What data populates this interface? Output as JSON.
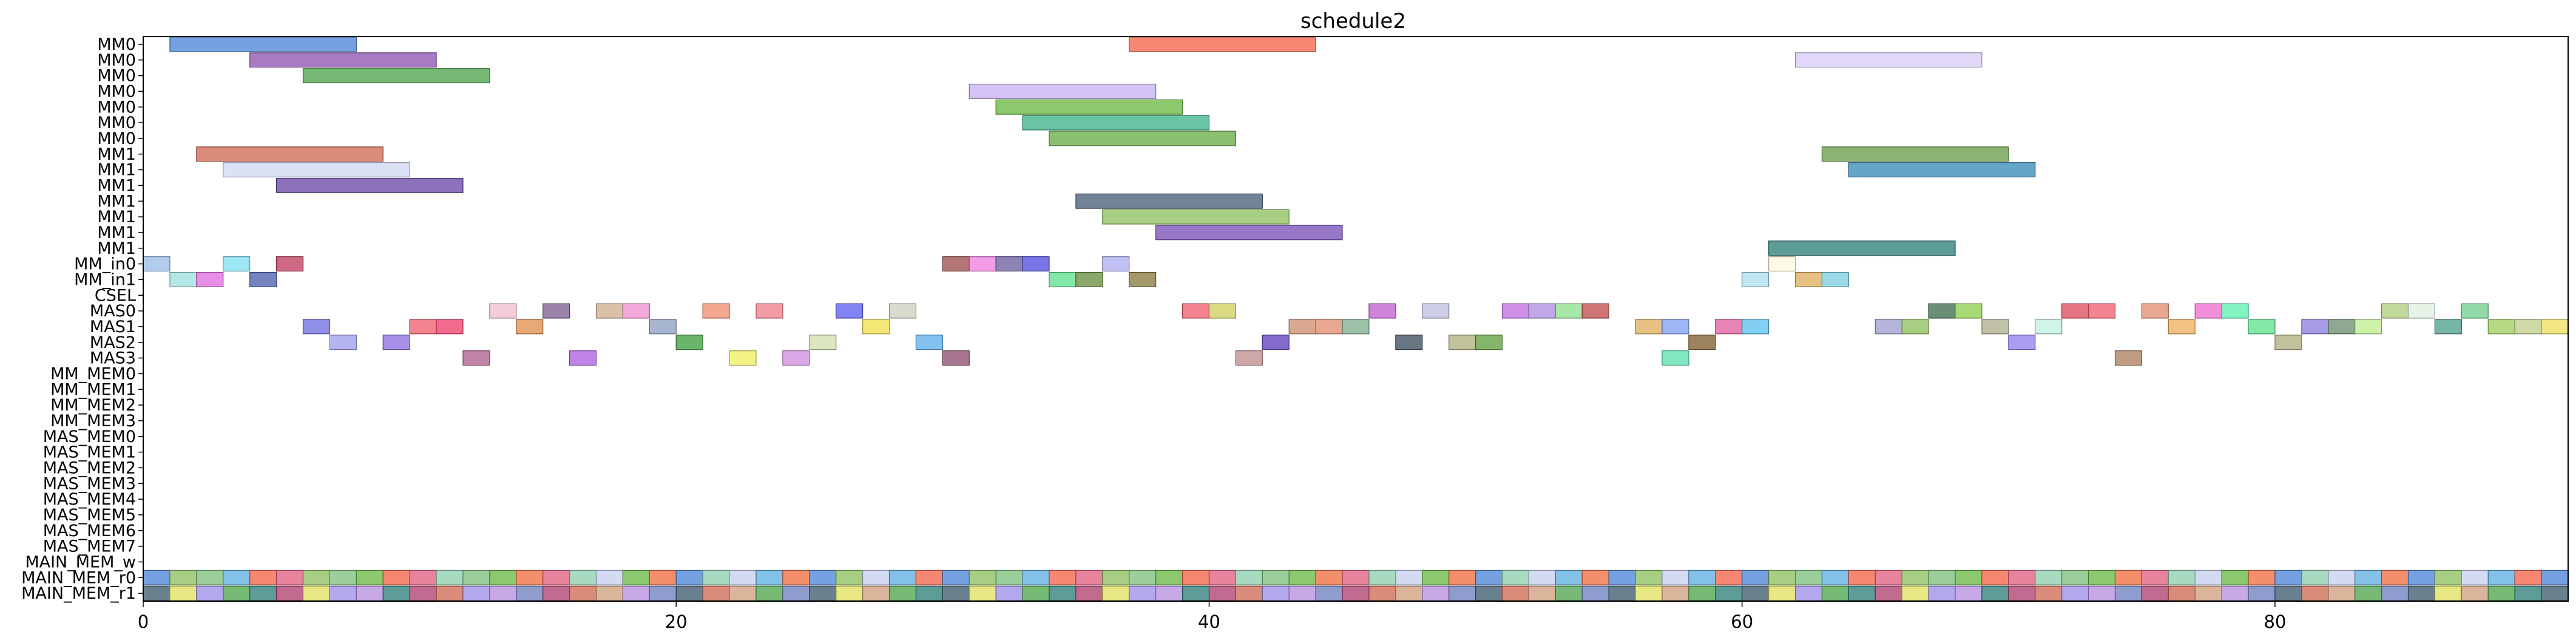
{
  "chart_data": {
    "type": "gantt",
    "title": "schedule2",
    "xlabel": "",
    "ylabel": "",
    "xlim": [
      0,
      91
    ],
    "xticks": [
      0,
      20,
      40,
      60,
      80
    ],
    "rows": [
      "MM0",
      "MM0",
      "MM0",
      "MM0",
      "MM0",
      "MM0",
      "MM0",
      "MM1",
      "MM1",
      "MM1",
      "MM1",
      "MM1",
      "MM1",
      "MM1",
      "MM_in0",
      "MM_in1",
      "CSEL",
      "MAS0",
      "MAS1",
      "MAS2",
      "MAS3",
      "MM_MEM0",
      "MM_MEM1",
      "MM_MEM2",
      "MM_MEM3",
      "MAS_MEM0",
      "MAS_MEM1",
      "MAS_MEM2",
      "MAS_MEM3",
      "MAS_MEM4",
      "MAS_MEM5",
      "MAS_MEM6",
      "MAS_MEM7",
      "MAIN_MEM_w",
      "MAIN_MEM_r0",
      "MAIN_MEM_r1"
    ],
    "palette": [
      "#4e86d8",
      "#8e55b0",
      "#4ea54e",
      "#f4664b",
      "#c470a0",
      "#9d8ee8",
      "#6bb844",
      "#3fb38b",
      "#d06a55",
      "#c9cff0",
      "#6a4aa8",
      "#3f5e70",
      "#8fc060",
      "#2b7d9e",
      "#2f7f7a",
      "#e06080",
      "#80e0f0",
      "#b890e0",
      "#f07040",
      "#a0a0f0",
      "#d0a080",
      "#60b0e0",
      "#f09090",
      "#e0e060",
      "#80c080",
      "#c0c0c0",
      "#b04070",
      "#90d0b0",
      "#e0b040",
      "#7080c0"
    ],
    "bars": [
      {
        "row": 0,
        "start": 1.0,
        "end": 8.0,
        "color": "#4e86d8"
      },
      {
        "row": 0,
        "start": 37.0,
        "end": 44.0,
        "color": "#f4664b"
      },
      {
        "row": 1,
        "start": 4.0,
        "end": 11.0,
        "color": "#8e55b0"
      },
      {
        "row": 1,
        "start": 62.0,
        "end": 69.0,
        "color": "#d9cdf7"
      },
      {
        "row": 2,
        "start": 6.0,
        "end": 13.0,
        "color": "#4ea54e"
      },
      {
        "row": 3,
        "start": 31.0,
        "end": 38.0,
        "color": "#c7b3f2"
      },
      {
        "row": 4,
        "start": 32.0,
        "end": 39.0,
        "color": "#6bb844"
      },
      {
        "row": 5,
        "start": 33.0,
        "end": 40.0,
        "color": "#3fb38b"
      },
      {
        "row": 6,
        "start": 34.0,
        "end": 41.0,
        "color": "#6aae48"
      },
      {
        "row": 7,
        "start": 2.0,
        "end": 9.0,
        "color": "#d06a55"
      },
      {
        "row": 7,
        "start": 63.0,
        "end": 70.0,
        "color": "#6a9e4a"
      },
      {
        "row": 8,
        "start": 3.0,
        "end": 10.0,
        "color": "#d2d8f2"
      },
      {
        "row": 8,
        "start": 64.0,
        "end": 71.0,
        "color": "#3b8ab8"
      },
      {
        "row": 9,
        "start": 5.0,
        "end": 12.0,
        "color": "#6a4aa8"
      },
      {
        "row": 10,
        "start": 35.0,
        "end": 42.0,
        "color": "#4c5f78"
      },
      {
        "row": 11,
        "start": 36.0,
        "end": 43.0,
        "color": "#8fc060"
      },
      {
        "row": 12,
        "start": 38.0,
        "end": 45.0,
        "color": "#7a52b8"
      },
      {
        "row": 13,
        "start": 61.0,
        "end": 68.0,
        "color": "#2f7f7a"
      }
    ],
    "short_rows": {
      "14": [
        [
          0,
          "#9dbde8"
        ],
        [
          3,
          "#80e0f0"
        ],
        [
          5,
          "#c04060"
        ],
        [
          30,
          "#9d5050"
        ],
        [
          31,
          "#f080e0"
        ],
        [
          32,
          "#7060a0"
        ],
        [
          33,
          "#5050e0"
        ],
        [
          36,
          "#b0b0f0"
        ],
        [
          61,
          "#fff8e0"
        ]
      ],
      "15": [
        [
          1,
          "#a0e0e0"
        ],
        [
          2,
          "#e070e0"
        ],
        [
          4,
          "#5060b0"
        ],
        [
          34,
          "#60e090"
        ],
        [
          35,
          "#6a9040"
        ],
        [
          37,
          "#8a7a40"
        ],
        [
          60,
          "#b0e0f0"
        ],
        [
          62,
          "#e0b060"
        ],
        [
          63,
          "#80d0e0"
        ]
      ],
      "17": [
        [
          13,
          "#f0c0d0"
        ],
        [
          15,
          "#806090"
        ],
        [
          17,
          "#d0b090"
        ],
        [
          18,
          "#f090d0"
        ],
        [
          21,
          "#f09070"
        ],
        [
          23,
          "#f08090"
        ],
        [
          26,
          "#6060f0"
        ],
        [
          28,
          "#d0d0c0"
        ],
        [
          39,
          "#f06070"
        ],
        [
          40,
          "#d0d060"
        ],
        [
          46,
          "#c060d0"
        ],
        [
          48,
          "#c0c0e0"
        ],
        [
          51,
          "#c070e0"
        ],
        [
          52,
          "#b090e0"
        ],
        [
          53,
          "#90e090"
        ],
        [
          54,
          "#c05050"
        ],
        [
          67,
          "#407050"
        ],
        [
          68,
          "#90d050"
        ],
        [
          72,
          "#e05060"
        ],
        [
          73,
          "#f06070"
        ],
        [
          75,
          "#e09070"
        ],
        [
          77,
          "#f070d0"
        ],
        [
          78,
          "#60f0b0"
        ],
        [
          84,
          "#b0d080"
        ],
        [
          85,
          "#e0f0e0"
        ],
        [
          87,
          "#70d090"
        ]
      ],
      "18": [
        [
          6,
          "#7070e0"
        ],
        [
          10,
          "#f06070"
        ],
        [
          11,
          "#f04070"
        ],
        [
          14,
          "#e09050"
        ],
        [
          19,
          "#90a0c0"
        ],
        [
          27,
          "#f0e050"
        ],
        [
          43,
          "#d09070"
        ],
        [
          44,
          "#e09070"
        ],
        [
          45,
          "#80b090"
        ],
        [
          56,
          "#e0b060"
        ],
        [
          57,
          "#80a0f0"
        ],
        [
          59,
          "#e060a0"
        ],
        [
          60,
          "#60c0f0"
        ],
        [
          65,
          "#a0a0d0"
        ],
        [
          66,
          "#90c060"
        ],
        [
          69,
          "#b0b090"
        ],
        [
          71,
          "#c0f0e0"
        ],
        [
          76,
          "#f0b060"
        ],
        [
          79,
          "#60e090"
        ],
        [
          81,
          "#9080e0"
        ],
        [
          82,
          "#709070"
        ],
        [
          83,
          "#c0f090"
        ],
        [
          86,
          "#50a090"
        ],
        [
          88,
          "#a0d060"
        ],
        [
          89,
          "#c0d090"
        ],
        [
          90,
          "#f0e060"
        ]
      ],
      "19": [
        [
          7,
          "#a0a0f0"
        ],
        [
          9,
          "#9070e0"
        ],
        [
          20,
          "#40a040"
        ],
        [
          25,
          "#d0e0b0"
        ],
        [
          29,
          "#60b0f0"
        ],
        [
          42,
          "#6040c0"
        ],
        [
          47,
          "#405060"
        ],
        [
          49,
          "#b0b080"
        ],
        [
          50,
          "#60a040"
        ],
        [
          58,
          "#806030"
        ],
        [
          70,
          "#9080f0"
        ],
        [
          80,
          "#b0b080"
        ]
      ],
      "20": [
        [
          12,
          "#b06090"
        ],
        [
          16,
          "#b060e0"
        ],
        [
          22,
          "#f0f060"
        ],
        [
          24,
          "#d090e0"
        ],
        [
          30,
          "#905070"
        ],
        [
          41,
          "#c09090"
        ],
        [
          57,
          "#60e0b0"
        ],
        [
          74,
          "#b08060"
        ]
      ]
    }
  }
}
